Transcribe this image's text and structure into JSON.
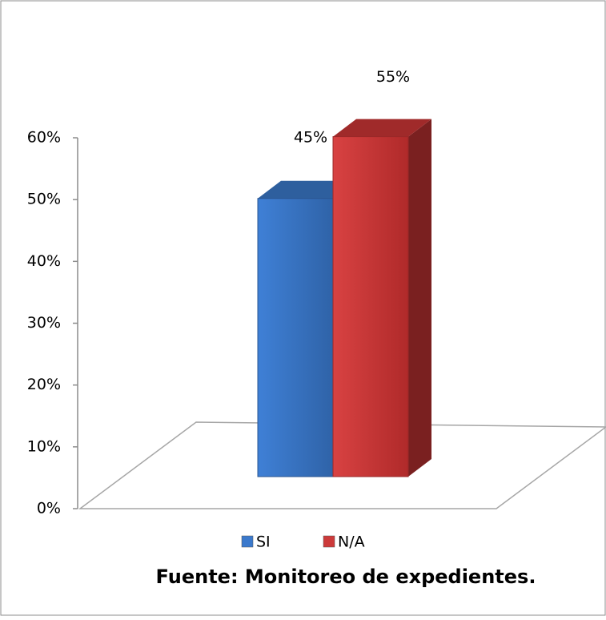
{
  "chart_data": {
    "type": "bar3d",
    "caption": "Fuente: Monitoreo de expedientes.",
    "categories": [
      null
    ],
    "series": [
      {
        "name": "SI",
        "color": "#3b79cc",
        "values": [
          45
        ],
        "value_labels": [
          "45%"
        ]
      },
      {
        "name": "N/A",
        "color": "#cc3a3a",
        "values": [
          55
        ],
        "value_labels": [
          "55%"
        ]
      }
    ],
    "ylim": [
      0,
      60
    ],
    "yticks": [
      {
        "value": 0,
        "label": "0%"
      },
      {
        "value": 10,
        "label": "10%"
      },
      {
        "value": 20,
        "label": "20%"
      },
      {
        "value": 30,
        "label": "30%"
      },
      {
        "value": 40,
        "label": "40%"
      },
      {
        "value": 50,
        "label": "50%"
      },
      {
        "value": 60,
        "label": "60%"
      }
    ],
    "legend": "bottom"
  }
}
